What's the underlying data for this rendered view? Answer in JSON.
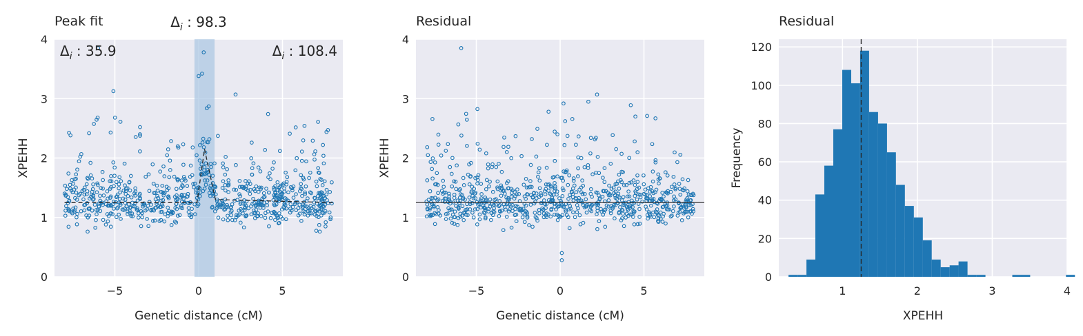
{
  "colors": {
    "plot_background": "#eaeaf2",
    "grid": "#ffffff",
    "marker": "#1f77b4",
    "bars": "#1f77b4",
    "highlight_band": "#a9c6e3",
    "reference_line": "#262626"
  },
  "chart_data": [
    {
      "type": "scatter",
      "title": "Peak fit",
      "xlabel": "Genetic distance (cM)",
      "ylabel": "XPEHH",
      "xlim": [
        -8.6,
        8.6
      ],
      "ylim": [
        0,
        4
      ],
      "xticks": [
        -5,
        0,
        5
      ],
      "xtick_labels": [
        "−5",
        "0",
        "5"
      ],
      "yticks": [
        0,
        1,
        2,
        3,
        4
      ],
      "ytick_labels": [
        "0",
        "1",
        "2",
        "3",
        "4"
      ],
      "grid": true,
      "n_points_approx": 800,
      "baseline": 1.25,
      "peak": {
        "center": 0.4,
        "height": 2.15,
        "shaded_interval": [
          -0.25,
          0.95
        ]
      },
      "outliers": [
        [
          -6.0,
          3.85
        ],
        [
          0.0,
          3.38
        ],
        [
          0.2,
          3.42
        ],
        [
          0.3,
          3.78
        ],
        [
          0.6,
          2.87
        ],
        [
          2.2,
          3.07
        ]
      ],
      "annotations": [
        {
          "text": "Δ",
          "sub": "i",
          "value_text": " : 35.9",
          "position": "upper-left"
        },
        {
          "text": "Δ",
          "sub": "i",
          "value_text": " : 98.3",
          "position": "above-peak"
        },
        {
          "text": "Δ",
          "sub": "i",
          "value_text": " : 108.4",
          "position": "upper-right"
        }
      ]
    },
    {
      "type": "scatter",
      "title": "Residual",
      "xlabel": "Genetic distance (cM)",
      "ylabel": "XPEHH",
      "xlim": [
        -8.6,
        8.6
      ],
      "ylim": [
        0,
        4
      ],
      "xticks": [
        -5,
        0,
        5
      ],
      "xtick_labels": [
        "−5",
        "0",
        "5"
      ],
      "yticks": [
        0,
        1,
        2,
        3,
        4
      ],
      "ytick_labels": [
        "0",
        "1",
        "2",
        "3",
        "4"
      ],
      "grid": true,
      "n_points_approx": 800,
      "reference_line_y": 1.25,
      "outliers": [
        [
          -5.9,
          3.85
        ],
        [
          0.2,
          2.92
        ],
        [
          0.3,
          2.62
        ],
        [
          2.2,
          3.07
        ],
        [
          0.1,
          0.28
        ],
        [
          0.1,
          0.4
        ]
      ]
    },
    {
      "type": "bar",
      "title": "Residual",
      "xlabel": "XPEHH",
      "ylabel": "Frequency",
      "xlim": [
        0.15,
        4.0
      ],
      "ylim": [
        0,
        124
      ],
      "xticks": [
        1,
        2,
        3,
        4
      ],
      "xtick_labels": [
        "1",
        "2",
        "3",
        "4"
      ],
      "yticks": [
        0,
        20,
        40,
        60,
        80,
        100,
        120
      ],
      "ytick_labels": [
        "0",
        "20",
        "40",
        "60",
        "80",
        "100",
        "120"
      ],
      "grid": true,
      "bin_start": 0.28,
      "bin_width": 0.1195,
      "counts": [
        1,
        1,
        9,
        43,
        58,
        77,
        108,
        101,
        118,
        86,
        80,
        65,
        48,
        37,
        31,
        19,
        9,
        5,
        6,
        8,
        1,
        1,
        0,
        0,
        0,
        1,
        1,
        0,
        0,
        0,
        0,
        1
      ],
      "reference_line_x": 1.25
    }
  ]
}
